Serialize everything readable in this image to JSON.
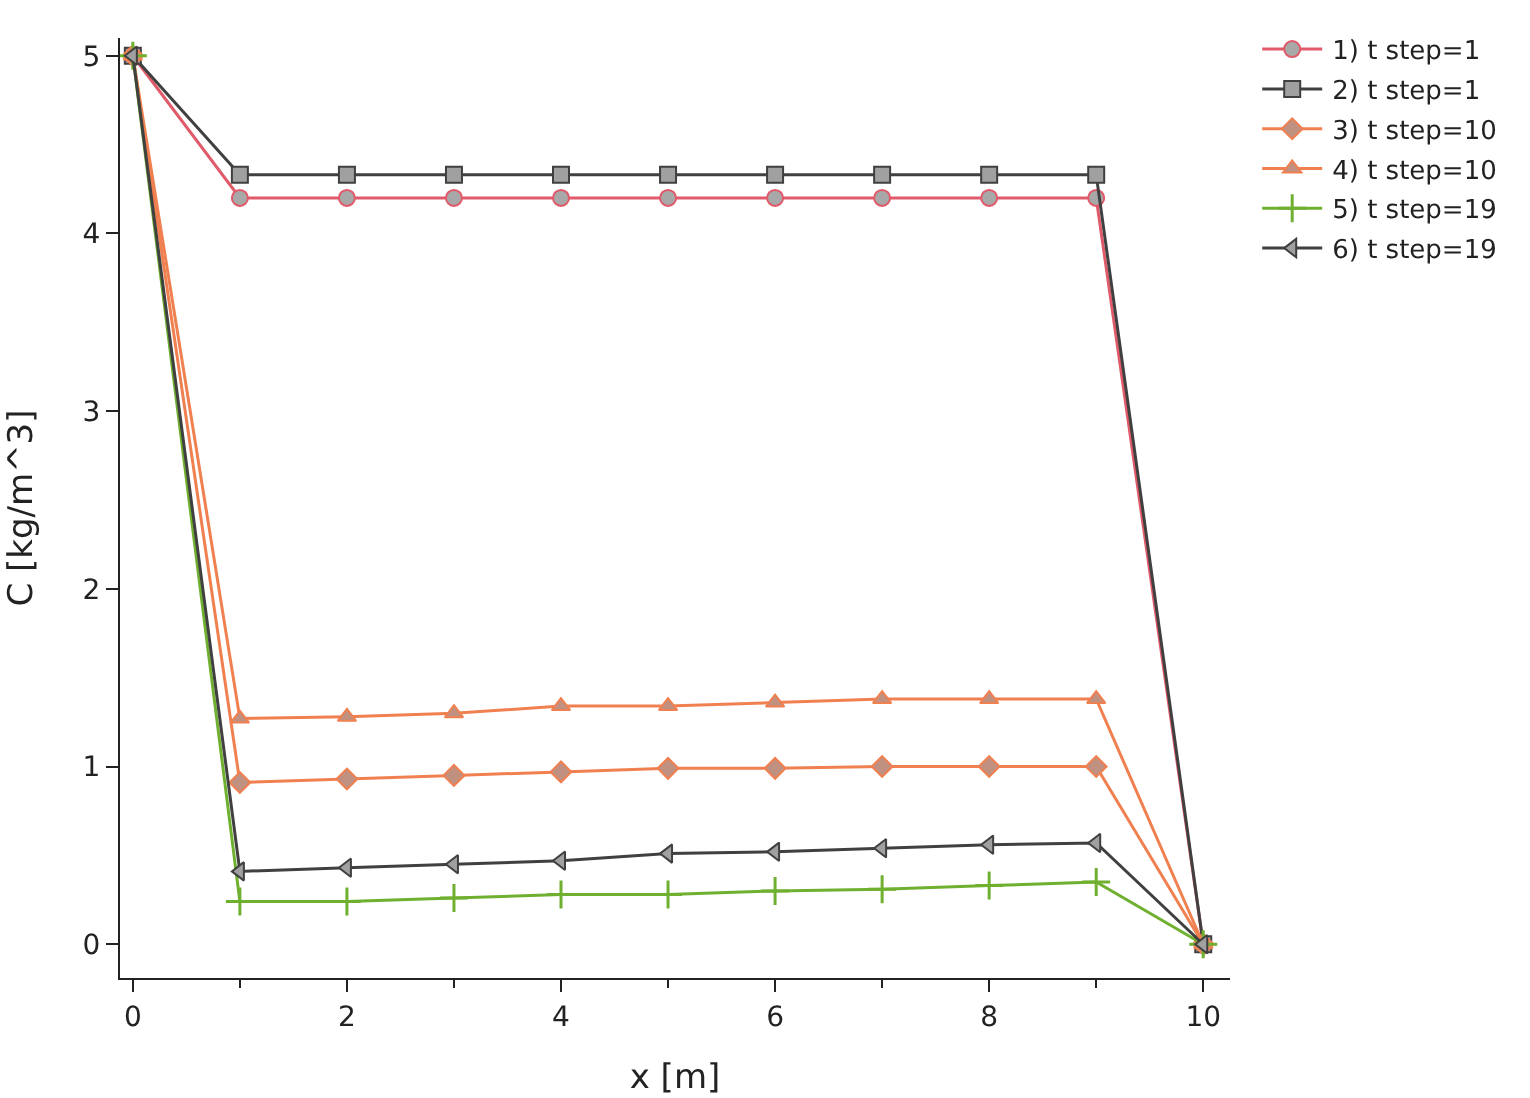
{
  "chart_data": {
    "type": "line",
    "xlabel": "x [m]",
    "ylabel": "C [kg/m^3]",
    "x": [
      0,
      1,
      2,
      3,
      4,
      5,
      6,
      7,
      8,
      9,
      10
    ],
    "series": [
      {
        "name": "1) t step=1",
        "color": "#e05a6a",
        "marker": "circle",
        "values": [
          5,
          4.2,
          4.2,
          4.2,
          4.2,
          4.2,
          4.2,
          4.2,
          4.2,
          4.2,
          0
        ]
      },
      {
        "name": "2) t step=1",
        "color": "#404040",
        "marker": "square",
        "values": [
          5,
          4.33,
          4.33,
          4.33,
          4.33,
          4.33,
          4.33,
          4.33,
          4.33,
          4.33,
          0
        ]
      },
      {
        "name": "3) t step=10",
        "color": "#f08050",
        "marker": "diamond",
        "values": [
          5,
          0.91,
          0.93,
          0.95,
          0.97,
          0.99,
          0.99,
          1.0,
          1.0,
          1.0,
          0
        ]
      },
      {
        "name": "4) t step=10",
        "color": "#f08050",
        "marker": "triangle",
        "values": [
          5,
          1.27,
          1.28,
          1.3,
          1.34,
          1.34,
          1.36,
          1.38,
          1.38,
          1.38,
          0
        ]
      },
      {
        "name": "5) t step=19",
        "color": "#70b030",
        "marker": "cross",
        "values": [
          5,
          0.24,
          0.24,
          0.26,
          0.28,
          0.28,
          0.3,
          0.31,
          0.33,
          0.35,
          0
        ]
      },
      {
        "name": "6) t step=19",
        "color": "#404040",
        "marker": "triangle-left",
        "values": [
          5,
          0.41,
          0.43,
          0.45,
          0.47,
          0.51,
          0.52,
          0.54,
          0.56,
          0.57,
          0
        ]
      }
    ],
    "xlim": [
      -0.12,
      10.25
    ],
    "ylim": [
      -0.19,
      5.1
    ],
    "xticks": [
      0,
      2,
      4,
      6,
      8,
      10
    ],
    "yticks": [
      0,
      1,
      2,
      3,
      4,
      5
    ],
    "grid": false,
    "legend": "top right",
    "line_style": "solid"
  }
}
